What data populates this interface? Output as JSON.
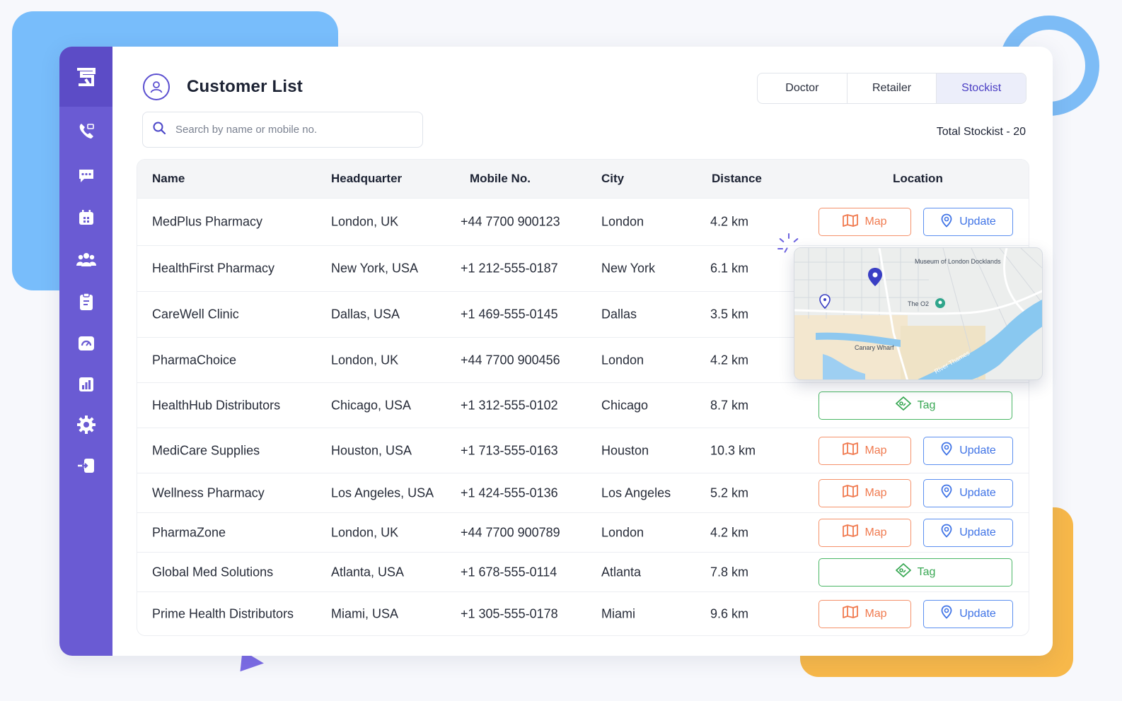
{
  "sidebar": {
    "logo_icon": "app-logo-icon",
    "items": [
      {
        "name": "phone-icon"
      },
      {
        "name": "chat-icon"
      },
      {
        "name": "calendar-icon"
      },
      {
        "name": "team-icon"
      },
      {
        "name": "clipboard-icon"
      },
      {
        "name": "dashboard-icon"
      },
      {
        "name": "bar-chart-icon"
      },
      {
        "name": "settings-icon"
      },
      {
        "name": "logout-icon"
      }
    ],
    "bg_color": "#6a5bd3"
  },
  "header": {
    "title": "Customer List",
    "icon": "user-circle-icon"
  },
  "search": {
    "placeholder": "Search by name or mobile no.",
    "value": ""
  },
  "tabs": [
    {
      "label": "Doctor",
      "active": false
    },
    {
      "label": "Retailer",
      "active": false
    },
    {
      "label": "Stockist",
      "active": true
    }
  ],
  "total_label": "Total Stockist - 20",
  "table": {
    "columns": [
      "Name",
      "Headquarter",
      "Mobile No.",
      "City",
      "Distance",
      "Location"
    ],
    "rows": [
      {
        "name": "MedPlus Pharmacy",
        "hq": "London, UK",
        "mobile": "+44 7700 900123",
        "city": "London",
        "distance": "4.2 km",
        "actions": "map-update"
      },
      {
        "name": "HealthFirst Pharmacy",
        "hq": "New York, USA",
        "mobile": "+1 212-555-0187",
        "city": "New York",
        "distance": "6.1 km",
        "actions": "none"
      },
      {
        "name": "CareWell Clinic",
        "hq": "Dallas, USA",
        "mobile": "+1 469-555-0145",
        "city": "Dallas",
        "distance": "3.5 km",
        "actions": "none"
      },
      {
        "name": "PharmaChoice",
        "hq": "London, UK",
        "mobile": "+44 7700 900456",
        "city": "London",
        "distance": "4.2 km",
        "actions": "none"
      },
      {
        "name": "HealthHub Distributors",
        "hq": "Chicago, USA",
        "mobile": "+1 312-555-0102",
        "city": "Chicago",
        "distance": "8.7 km",
        "actions": "tag"
      },
      {
        "name": "MediCare Supplies",
        "hq": "Houston, USA",
        "mobile": "+1 713-555-0163",
        "city": "Houston",
        "distance": "10.3 km",
        "actions": "map-update"
      },
      {
        "name": "Wellness Pharmacy",
        "hq": "Los Angeles, USA",
        "mobile": "+1 424-555-0136",
        "city": "Los Angeles",
        "distance": "5.2 km",
        "actions": "map-update"
      },
      {
        "name": "PharmaZone",
        "hq": "London, UK",
        "mobile": "+44 7700 900789",
        "city": "London",
        "distance": "4.2 km",
        "actions": "map-update"
      },
      {
        "name": "Global Med Solutions",
        "hq": "Atlanta, USA",
        "mobile": "+1 678-555-0114",
        "city": "Atlanta",
        "distance": "7.8 km",
        "actions": "tag"
      },
      {
        "name": "Prime Health Distributors",
        "hq": "Miami, USA",
        "mobile": "+1 305-555-0178",
        "city": "Miami",
        "distance": "9.6 km",
        "actions": "map-update"
      }
    ]
  },
  "buttons": {
    "map_label": "Map",
    "update_label": "Update",
    "tag_label": "Tag"
  },
  "map_popup": {
    "labels": [
      "Museum of London Docklands",
      "The O2",
      "Canary Wharf",
      "River Thames"
    ]
  },
  "colors": {
    "accent": "#5b4fd0",
    "map": "#f07a4f",
    "update": "#3f73e6",
    "tag": "#3aa855"
  }
}
